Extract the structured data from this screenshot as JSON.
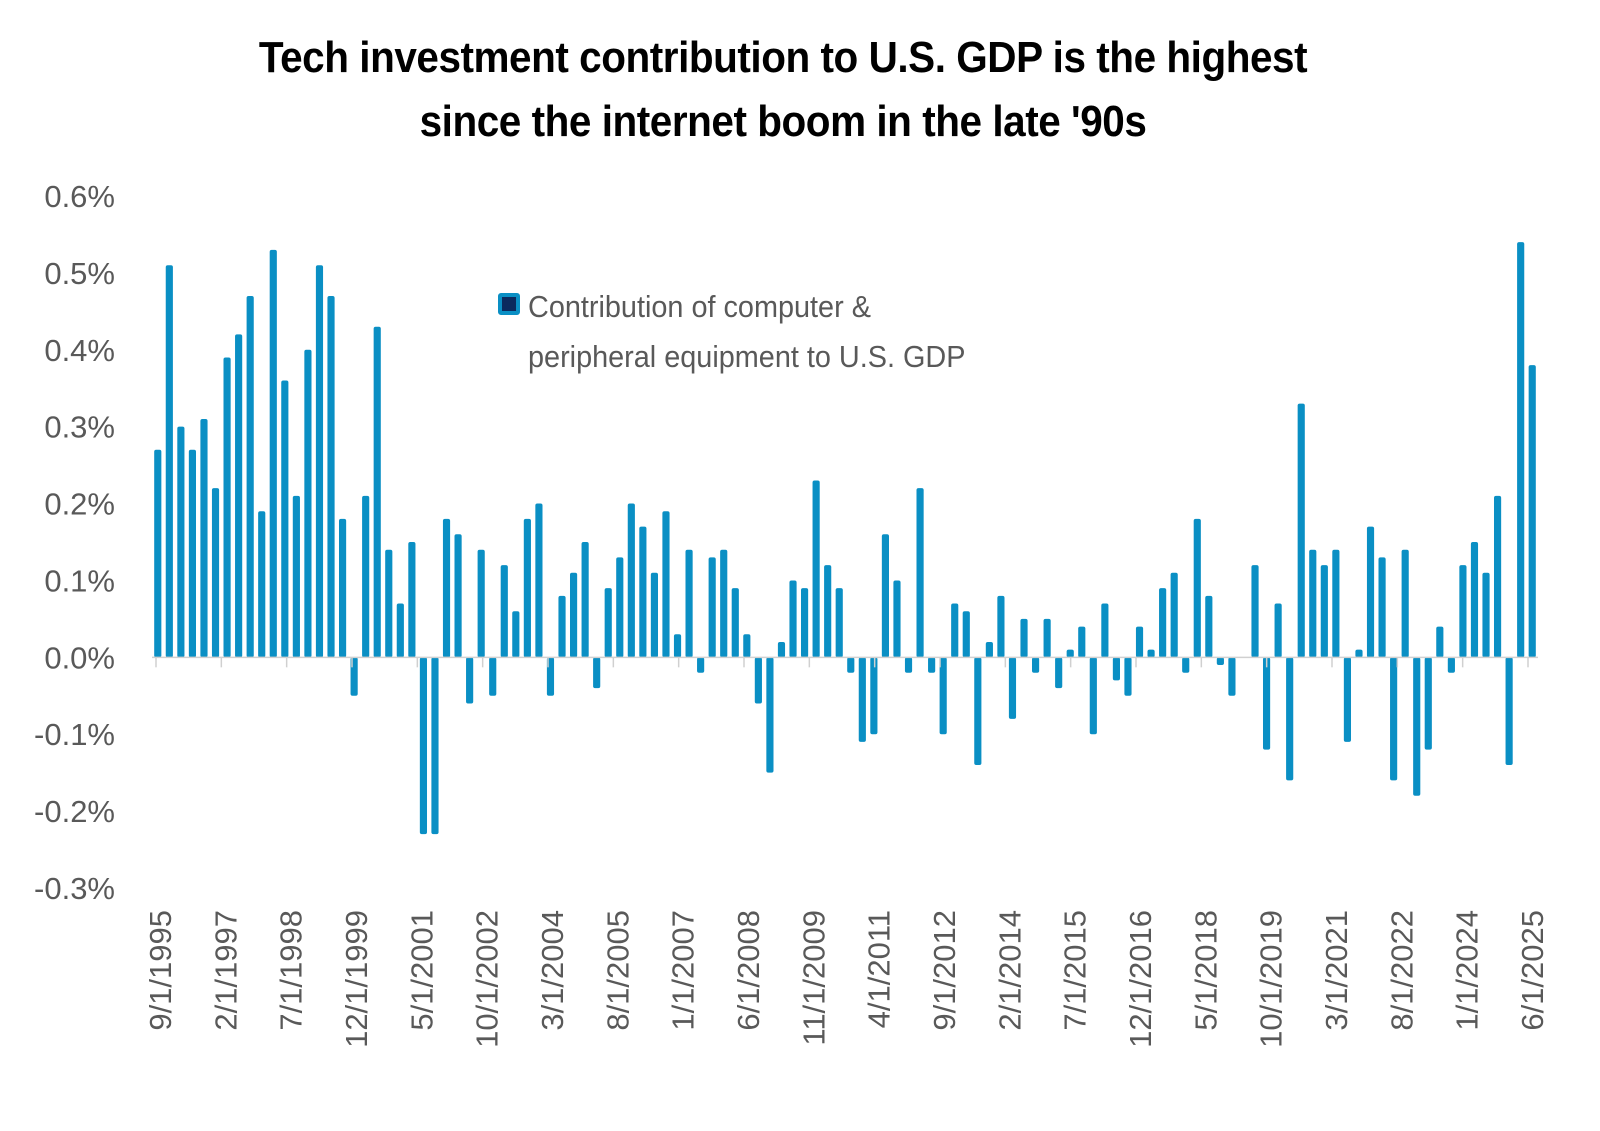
{
  "chart_data": {
    "type": "bar",
    "title": "Tech investment contribution to U.S. GDP is the highest since the internet boom in the late '90s",
    "title_lines": [
      "Tech investment contribution to U.S. GDP is the highest",
      "since the internet boom in the late '90s"
    ],
    "xlabel": "",
    "ylabel": "",
    "ylim": [
      -0.3,
      0.6
    ],
    "yticks": [
      0.6,
      0.5,
      0.4,
      0.3,
      0.2,
      0.1,
      0.0,
      -0.1,
      -0.2,
      -0.3
    ],
    "ytick_labels": [
      "0.6%",
      "0.5%",
      "0.4%",
      "0.3%",
      "0.2%",
      "0.1%",
      "0.0%",
      "-0.1%",
      "-0.2%",
      "-0.3%"
    ],
    "grid": false,
    "legend_position": "top-center",
    "x_start": "9/1/1995",
    "x_end": "6/1/2025",
    "frequency": "quarterly",
    "xtick_labels": [
      "9/1/1995",
      "2/1/1997",
      "7/1/1998",
      "12/1/1999",
      "5/1/2001",
      "10/1/2002",
      "3/1/2004",
      "8/1/2005",
      "1/1/2007",
      "6/1/2008",
      "11/1/2009",
      "4/1/2011",
      "9/1/2012",
      "2/1/2014",
      "7/1/2015",
      "12/1/2016",
      "5/1/2018",
      "10/1/2019",
      "3/1/2021",
      "8/1/2022",
      "1/1/2024",
      "6/1/2025"
    ],
    "series": [
      {
        "name": "Contribution of computer & peripheral equipment to U.S. GDP",
        "legend_lines": [
          "Contribution of computer &",
          "peripheral equipment to U.S. GDP"
        ],
        "color": "#0a8fc4",
        "legend_fill": "#0b2a5e",
        "unit": "%",
        "values": [
          0.27,
          0.51,
          0.3,
          0.27,
          0.31,
          0.22,
          0.39,
          0.42,
          0.47,
          0.19,
          0.53,
          0.36,
          0.21,
          0.4,
          0.51,
          0.47,
          0.18,
          -0.05,
          0.21,
          0.43,
          0.14,
          0.07,
          0.15,
          -0.23,
          -0.23,
          0.18,
          0.16,
          -0.06,
          0.14,
          -0.05,
          0.12,
          0.06,
          0.18,
          0.2,
          -0.05,
          0.08,
          0.11,
          0.15,
          -0.04,
          0.09,
          0.13,
          0.2,
          0.17,
          0.11,
          0.19,
          0.03,
          0.14,
          -0.02,
          0.13,
          0.14,
          0.09,
          0.03,
          -0.06,
          -0.15,
          0.02,
          0.1,
          0.09,
          0.23,
          0.12,
          0.09,
          -0.02,
          -0.11,
          -0.1,
          0.16,
          0.1,
          -0.02,
          0.22,
          -0.02,
          -0.1,
          0.07,
          0.06,
          -0.14,
          0.02,
          0.08,
          -0.08,
          0.05,
          -0.02,
          0.05,
          -0.04,
          0.01,
          0.04,
          -0.1,
          0.07,
          -0.03,
          -0.05,
          0.04,
          0.01,
          0.09,
          0.11,
          -0.02,
          0.18,
          0.08,
          -0.01,
          -0.05,
          0.0,
          0.12,
          -0.12,
          0.07,
          -0.16,
          0.33,
          0.14,
          0.12,
          0.14,
          -0.11,
          0.01,
          0.17,
          0.13,
          -0.16,
          0.14,
          -0.18,
          -0.12,
          0.04,
          -0.02,
          0.12,
          0.15,
          0.11,
          0.21,
          -0.14,
          0.54,
          0.38
        ]
      }
    ]
  }
}
